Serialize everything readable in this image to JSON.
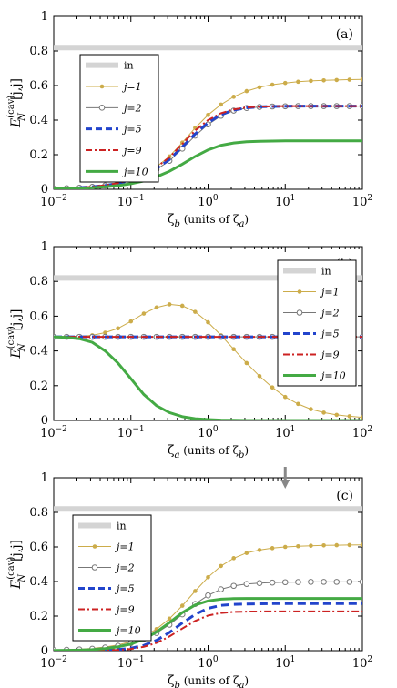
{
  "chart_data": [
    {
      "type": "line",
      "panel_label": "(a)",
      "xlabel": "ζ_b (units of ζ_a)",
      "ylabel": "E_N^(cav)[j,j]",
      "xscale": "log",
      "xlim": [
        0.01,
        100
      ],
      "ylim": [
        0,
        1
      ],
      "xticks": [
        "10^-2",
        "10^-1",
        "10^0",
        "10^1",
        "10^2"
      ],
      "yticks": [
        "0",
        "0.2",
        "0.4",
        "0.6",
        "0.8",
        "1"
      ],
      "grid": false,
      "legend_position": "left",
      "x": [
        0.01,
        0.0147,
        0.0215,
        0.0316,
        0.0464,
        0.0681,
        0.1,
        0.147,
        0.215,
        0.316,
        0.464,
        0.681,
        1,
        1.47,
        2.15,
        3.16,
        4.64,
        6.81,
        10,
        14.7,
        21.5,
        31.6,
        46.4,
        68.1,
        100
      ],
      "series": [
        {
          "name": "in",
          "color": "#d4d4d4",
          "style": "thick-solid",
          "values": [
            0.82,
            0.82,
            0.82,
            0.82,
            0.82,
            0.82,
            0.82,
            0.82,
            0.82,
            0.82,
            0.82,
            0.82,
            0.82,
            0.82,
            0.82,
            0.82,
            0.82,
            0.82,
            0.82,
            0.82,
            0.82,
            0.82,
            0.82,
            0.82,
            0.82
          ]
        },
        {
          "name": "j=1",
          "color": "#ccac4a",
          "style": "solid-dot",
          "values": [
            0.004,
            0.006,
            0.01,
            0.016,
            0.025,
            0.038,
            0.058,
            0.088,
            0.13,
            0.19,
            0.27,
            0.355,
            0.43,
            0.49,
            0.535,
            0.568,
            0.59,
            0.605,
            0.615,
            0.622,
            0.627,
            0.63,
            0.632,
            0.634,
            0.635
          ]
        },
        {
          "name": "j=2",
          "color": "#777777",
          "style": "solid-circle",
          "values": [
            0.004,
            0.006,
            0.009,
            0.014,
            0.022,
            0.034,
            0.052,
            0.078,
            0.115,
            0.165,
            0.235,
            0.31,
            0.375,
            0.425,
            0.455,
            0.47,
            0.476,
            0.479,
            0.48,
            0.481,
            0.481,
            0.481,
            0.481,
            0.481,
            0.481
          ]
        },
        {
          "name": "j=5",
          "color": "#2244cc",
          "style": "dashed",
          "values": [
            0.004,
            0.006,
            0.009,
            0.014,
            0.022,
            0.034,
            0.052,
            0.08,
            0.12,
            0.172,
            0.245,
            0.32,
            0.385,
            0.432,
            0.458,
            0.471,
            0.477,
            0.479,
            0.48,
            0.481,
            0.481,
            0.481,
            0.481,
            0.481,
            0.481
          ]
        },
        {
          "name": "j=9",
          "color": "#cc2222",
          "style": "dashdot",
          "values": [
            0.004,
            0.006,
            0.009,
            0.015,
            0.023,
            0.036,
            0.056,
            0.086,
            0.128,
            0.185,
            0.262,
            0.34,
            0.4,
            0.44,
            0.462,
            0.473,
            0.478,
            0.48,
            0.481,
            0.481,
            0.481,
            0.481,
            0.481,
            0.481,
            0.481
          ]
        },
        {
          "name": "j=10",
          "color": "#44aa44",
          "style": "thick-solid",
          "values": [
            0.003,
            0.004,
            0.006,
            0.009,
            0.014,
            0.021,
            0.032,
            0.048,
            0.072,
            0.104,
            0.145,
            0.19,
            0.228,
            0.254,
            0.268,
            0.275,
            0.278,
            0.279,
            0.28,
            0.28,
            0.28,
            0.28,
            0.28,
            0.28,
            0.28
          ]
        }
      ]
    },
    {
      "type": "line",
      "panel_label": "(b)",
      "xlabel": "ζ_a (units of ζ_b)",
      "ylabel": "E_N^(cav)[j,j]",
      "xscale": "log",
      "xlim": [
        0.01,
        100
      ],
      "ylim": [
        0,
        1
      ],
      "xticks": [
        "10^-2",
        "10^-1",
        "10^0",
        "10^1",
        "10^2"
      ],
      "yticks": [
        "0",
        "0.2",
        "0.4",
        "0.6",
        "0.8",
        "1"
      ],
      "grid": false,
      "legend_position": "top-right",
      "x": [
        0.01,
        0.0147,
        0.0215,
        0.0316,
        0.0464,
        0.0681,
        0.1,
        0.147,
        0.215,
        0.316,
        0.464,
        0.681,
        1,
        1.47,
        2.15,
        3.16,
        4.64,
        6.81,
        10,
        14.7,
        21.5,
        31.6,
        46.4,
        68.1,
        100
      ],
      "series": [
        {
          "name": "in",
          "color": "#d4d4d4",
          "style": "thick-solid",
          "values": [
            0.82,
            0.82,
            0.82,
            0.82,
            0.82,
            0.82,
            0.82,
            0.82,
            0.82,
            0.82,
            0.82,
            0.82,
            0.82,
            0.82,
            0.82,
            0.82,
            0.82,
            0.82,
            0.82,
            0.82,
            0.82,
            0.82,
            0.82,
            0.82,
            0.82
          ]
        },
        {
          "name": "j=1",
          "color": "#ccac4a",
          "style": "solid-dot",
          "values": [
            0.481,
            0.482,
            0.484,
            0.49,
            0.505,
            0.53,
            0.57,
            0.615,
            0.65,
            0.668,
            0.66,
            0.625,
            0.565,
            0.49,
            0.41,
            0.33,
            0.255,
            0.19,
            0.135,
            0.095,
            0.065,
            0.045,
            0.032,
            0.024,
            0.018
          ]
        },
        {
          "name": "j=2",
          "color": "#777777",
          "style": "solid-circle",
          "values": [
            0.481,
            0.481,
            0.481,
            0.481,
            0.481,
            0.481,
            0.481,
            0.481,
            0.481,
            0.481,
            0.481,
            0.481,
            0.481,
            0.481,
            0.481,
            0.481,
            0.481,
            0.481,
            0.481,
            0.481,
            0.481,
            0.481,
            0.481,
            0.481,
            0.481
          ]
        },
        {
          "name": "j=5",
          "color": "#2244cc",
          "style": "dashed",
          "values": [
            0.481,
            0.481,
            0.481,
            0.481,
            0.481,
            0.481,
            0.481,
            0.481,
            0.481,
            0.481,
            0.481,
            0.481,
            0.481,
            0.481,
            0.481,
            0.481,
            0.481,
            0.481,
            0.481,
            0.481,
            0.481,
            0.481,
            0.481,
            0.481,
            0.481
          ]
        },
        {
          "name": "j=9",
          "color": "#cc2222",
          "style": "dashdot",
          "values": [
            0.481,
            0.481,
            0.481,
            0.481,
            0.481,
            0.481,
            0.481,
            0.481,
            0.481,
            0.481,
            0.481,
            0.481,
            0.481,
            0.481,
            0.481,
            0.481,
            0.481,
            0.481,
            0.481,
            0.481,
            0.481,
            0.481,
            0.481,
            0.481,
            0.481
          ]
        },
        {
          "name": "j=10",
          "color": "#44aa44",
          "style": "thick-solid",
          "values": [
            0.481,
            0.478,
            0.47,
            0.45,
            0.4,
            0.33,
            0.24,
            0.15,
            0.085,
            0.045,
            0.022,
            0.01,
            0.005,
            0.002,
            0.001,
            0.0,
            0.0,
            0.0,
            0.0,
            0.0,
            0.0,
            0.0,
            0.0,
            0.0,
            0.0
          ]
        }
      ]
    },
    {
      "type": "line",
      "panel_label": "(c)",
      "xlabel": "ζ_b (units of ζ_a)",
      "ylabel": "E_N^(cav)[j,j]",
      "xscale": "log",
      "xlim": [
        0.01,
        100
      ],
      "ylim": [
        0,
        1
      ],
      "xticks": [
        "10^-2",
        "10^-1",
        "10^0",
        "10^1",
        "10^2"
      ],
      "yticks": [
        "0",
        "0.2",
        "0.4",
        "0.6",
        "0.8",
        "1"
      ],
      "grid": false,
      "legend_position": "left",
      "x": [
        0.01,
        0.0147,
        0.0215,
        0.0316,
        0.0464,
        0.0681,
        0.1,
        0.147,
        0.215,
        0.316,
        0.464,
        0.681,
        1,
        1.47,
        2.15,
        3.16,
        4.64,
        6.81,
        10,
        14.7,
        21.5,
        31.6,
        46.4,
        68.1,
        100
      ],
      "series": [
        {
          "name": "in",
          "color": "#d4d4d4",
          "style": "thick-solid",
          "values": [
            0.82,
            0.82,
            0.82,
            0.82,
            0.82,
            0.82,
            0.82,
            0.82,
            0.82,
            0.82,
            0.82,
            0.82,
            0.82,
            0.82,
            0.82,
            0.82,
            0.82,
            0.82,
            0.82,
            0.82,
            0.82,
            0.82,
            0.82,
            0.82,
            0.82
          ]
        },
        {
          "name": "j=1",
          "color": "#ccac4a",
          "style": "solid-dot",
          "values": [
            0.003,
            0.005,
            0.008,
            0.013,
            0.021,
            0.033,
            0.052,
            0.082,
            0.125,
            0.185,
            0.26,
            0.345,
            0.425,
            0.49,
            0.535,
            0.565,
            0.582,
            0.593,
            0.6,
            0.604,
            0.607,
            0.609,
            0.61,
            0.611,
            0.612
          ]
        },
        {
          "name": "j=2",
          "color": "#777777",
          "style": "solid-circle",
          "values": [
            0.003,
            0.005,
            0.007,
            0.011,
            0.018,
            0.028,
            0.044,
            0.068,
            0.102,
            0.15,
            0.21,
            0.27,
            0.32,
            0.355,
            0.375,
            0.386,
            0.391,
            0.394,
            0.396,
            0.397,
            0.398,
            0.398,
            0.398,
            0.398,
            0.398
          ]
        },
        {
          "name": "j=5",
          "color": "#2244cc",
          "style": "dashed",
          "values": [
            0.0,
            0.0,
            0.0,
            0.0,
            0.002,
            0.006,
            0.014,
            0.03,
            0.06,
            0.105,
            0.16,
            0.21,
            0.245,
            0.262,
            0.268,
            0.27,
            0.271,
            0.272,
            0.272,
            0.272,
            0.272,
            0.272,
            0.272,
            0.272,
            0.272
          ]
        },
        {
          "name": "j=9",
          "color": "#cc2222",
          "style": "dashdot",
          "values": [
            0.0,
            0.0,
            0.0,
            0.0,
            0.001,
            0.004,
            0.01,
            0.022,
            0.045,
            0.082,
            0.128,
            0.172,
            0.203,
            0.218,
            0.224,
            0.226,
            0.227,
            0.227,
            0.227,
            0.227,
            0.227,
            0.227,
            0.227,
            0.227,
            0.227
          ]
        },
        {
          "name": "j=10",
          "color": "#44aa44",
          "style": "thick-solid",
          "values": [
            0.001,
            0.002,
            0.003,
            0.006,
            0.012,
            0.022,
            0.038,
            0.066,
            0.108,
            0.162,
            0.22,
            0.264,
            0.288,
            0.298,
            0.301,
            0.302,
            0.302,
            0.302,
            0.302,
            0.302,
            0.302,
            0.302,
            0.302,
            0.302,
            0.302
          ]
        }
      ],
      "annotations": [
        {
          "type": "arrow",
          "x": 10,
          "direction": "down",
          "color": "#888888"
        }
      ]
    }
  ]
}
